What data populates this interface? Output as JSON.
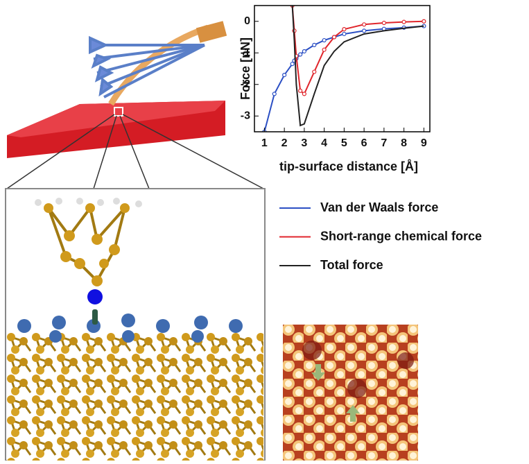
{
  "chart_data": {
    "type": "line",
    "x_label": "tip-surface distance [Å]",
    "y_label": "Force [nN]",
    "x": [
      1,
      1.5,
      2,
      2.4,
      2.5,
      2.6,
      2.8,
      3,
      3.5,
      4,
      4.5,
      5,
      6,
      7,
      8,
      9
    ],
    "series": [
      {
        "name": "Van der Waals force",
        "color": "#2b4fc4",
        "markers": true,
        "values": [
          -3.5,
          -2.3,
          -1.7,
          -1.35,
          -1.25,
          -1.18,
          -1.05,
          -0.95,
          -0.75,
          -0.6,
          -0.5,
          -0.4,
          -0.3,
          -0.24,
          -0.2,
          -0.15
        ]
      },
      {
        "name": "Short-range chemical force",
        "color": "#e0262c",
        "markers": true,
        "values": [
          null,
          null,
          null,
          0.5,
          -0.3,
          -1.1,
          -2.2,
          -2.3,
          -1.6,
          -0.9,
          -0.5,
          -0.25,
          -0.1,
          -0.05,
          -0.02,
          0
        ]
      },
      {
        "name": "Total force",
        "color": "#222222",
        "markers": false,
        "values": [
          null,
          null,
          null,
          0.5,
          -0.6,
          -2.0,
          -3.3,
          -3.25,
          -2.3,
          -1.4,
          -0.95,
          -0.65,
          -0.4,
          -0.3,
          -0.22,
          -0.15
        ]
      }
    ],
    "xlim": [
      0.5,
      9.3
    ],
    "ylim": [
      -3.5,
      0.5
    ],
    "xticks": [
      1,
      2,
      3,
      4,
      5,
      6,
      7,
      8,
      9
    ],
    "yticks": [
      -3,
      -2,
      -1,
      0
    ]
  }
}
